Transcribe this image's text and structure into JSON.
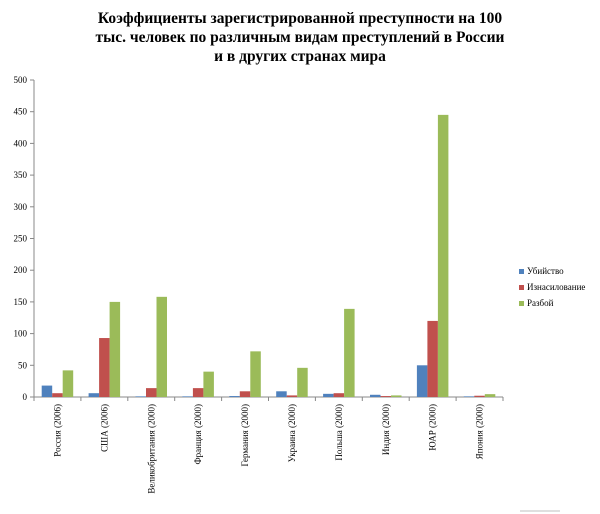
{
  "chart_data": {
    "type": "bar",
    "title_lines": [
      "Коэффициенты зарегистрированной преступности на 100",
      "тыс. человек по различным видам преступлений в России",
      "и в других странах мира"
    ],
    "categories": [
      "Россия (2006)",
      "США (2006)",
      "Великобритания (2000)",
      "Франция (2000)",
      "Германия (2000)",
      "Украина (2000)",
      "Польша (2000)",
      "Индия (2000)",
      "ЮАР (2000)",
      "Япония (2000)"
    ],
    "series": [
      {
        "name": "Убийство",
        "color": "#4F81BD",
        "values": [
          18,
          6,
          1,
          1,
          1.5,
          9,
          5,
          3.5,
          50,
          1
        ]
      },
      {
        "name": "Изнасилование",
        "color": "#C0504D",
        "values": [
          6,
          93,
          14,
          14,
          9,
          2.5,
          6,
          1.5,
          120,
          2
        ]
      },
      {
        "name": "Разбой",
        "color": "#9BBB59",
        "values": [
          42,
          150,
          158,
          40,
          72,
          46,
          139,
          2.5,
          445,
          4.5
        ]
      }
    ],
    "ylim": [
      0,
      500
    ],
    "yticks": [
      0,
      50,
      100,
      150,
      200,
      250,
      300,
      350,
      400,
      450,
      500
    ],
    "legend_position": "right",
    "grid": false
  }
}
